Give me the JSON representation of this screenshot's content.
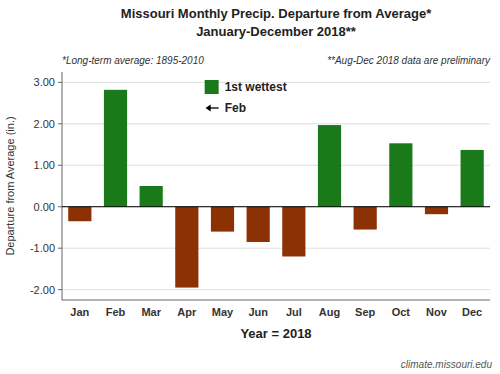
{
  "chart_data": {
    "type": "bar",
    "title": "Missouri Monthly Precip. Departure from Average*",
    "subtitle": "January-December 2018**",
    "x_label": "Year = 2018",
    "y_label": "Departure from Average (in.)",
    "categories": [
      "Jan",
      "Feb",
      "Mar",
      "Apr",
      "May",
      "Jun",
      "Jul",
      "Aug",
      "Sep",
      "Oct",
      "Nov",
      "Dec"
    ],
    "values": [
      -0.35,
      2.82,
      0.5,
      -1.95,
      -0.6,
      -0.85,
      -1.2,
      1.97,
      -0.55,
      1.53,
      -0.18,
      1.37
    ],
    "colors": [
      "#8B3103",
      "#1a7a1a",
      "#1a7a1a",
      "#8B3103",
      "#8B3103",
      "#8B3103",
      "#8B3103",
      "#1a7a1a",
      "#8B3103",
      "#1a7a1a",
      "#8B3103",
      "#1a7a1a"
    ],
    "ylim": [
      -2.25,
      3.25
    ],
    "yticks": [
      {
        "value": -2.0,
        "label": "-2.00"
      },
      {
        "value": -1.0,
        "label": "-1.00"
      },
      {
        "value": 0.0,
        "label": "0.00"
      },
      {
        "value": 1.0,
        "label": "1.00"
      },
      {
        "value": 2.0,
        "label": "2.00"
      },
      {
        "value": 3.0,
        "label": "3.00"
      }
    ],
    "grid": true,
    "annotations": [
      "*Long-term average: 1895-2010",
      "**Aug-Dec 2018 data are preliminary",
      "1st wettest",
      "Feb",
      "climate.missouri.edu"
    ]
  }
}
